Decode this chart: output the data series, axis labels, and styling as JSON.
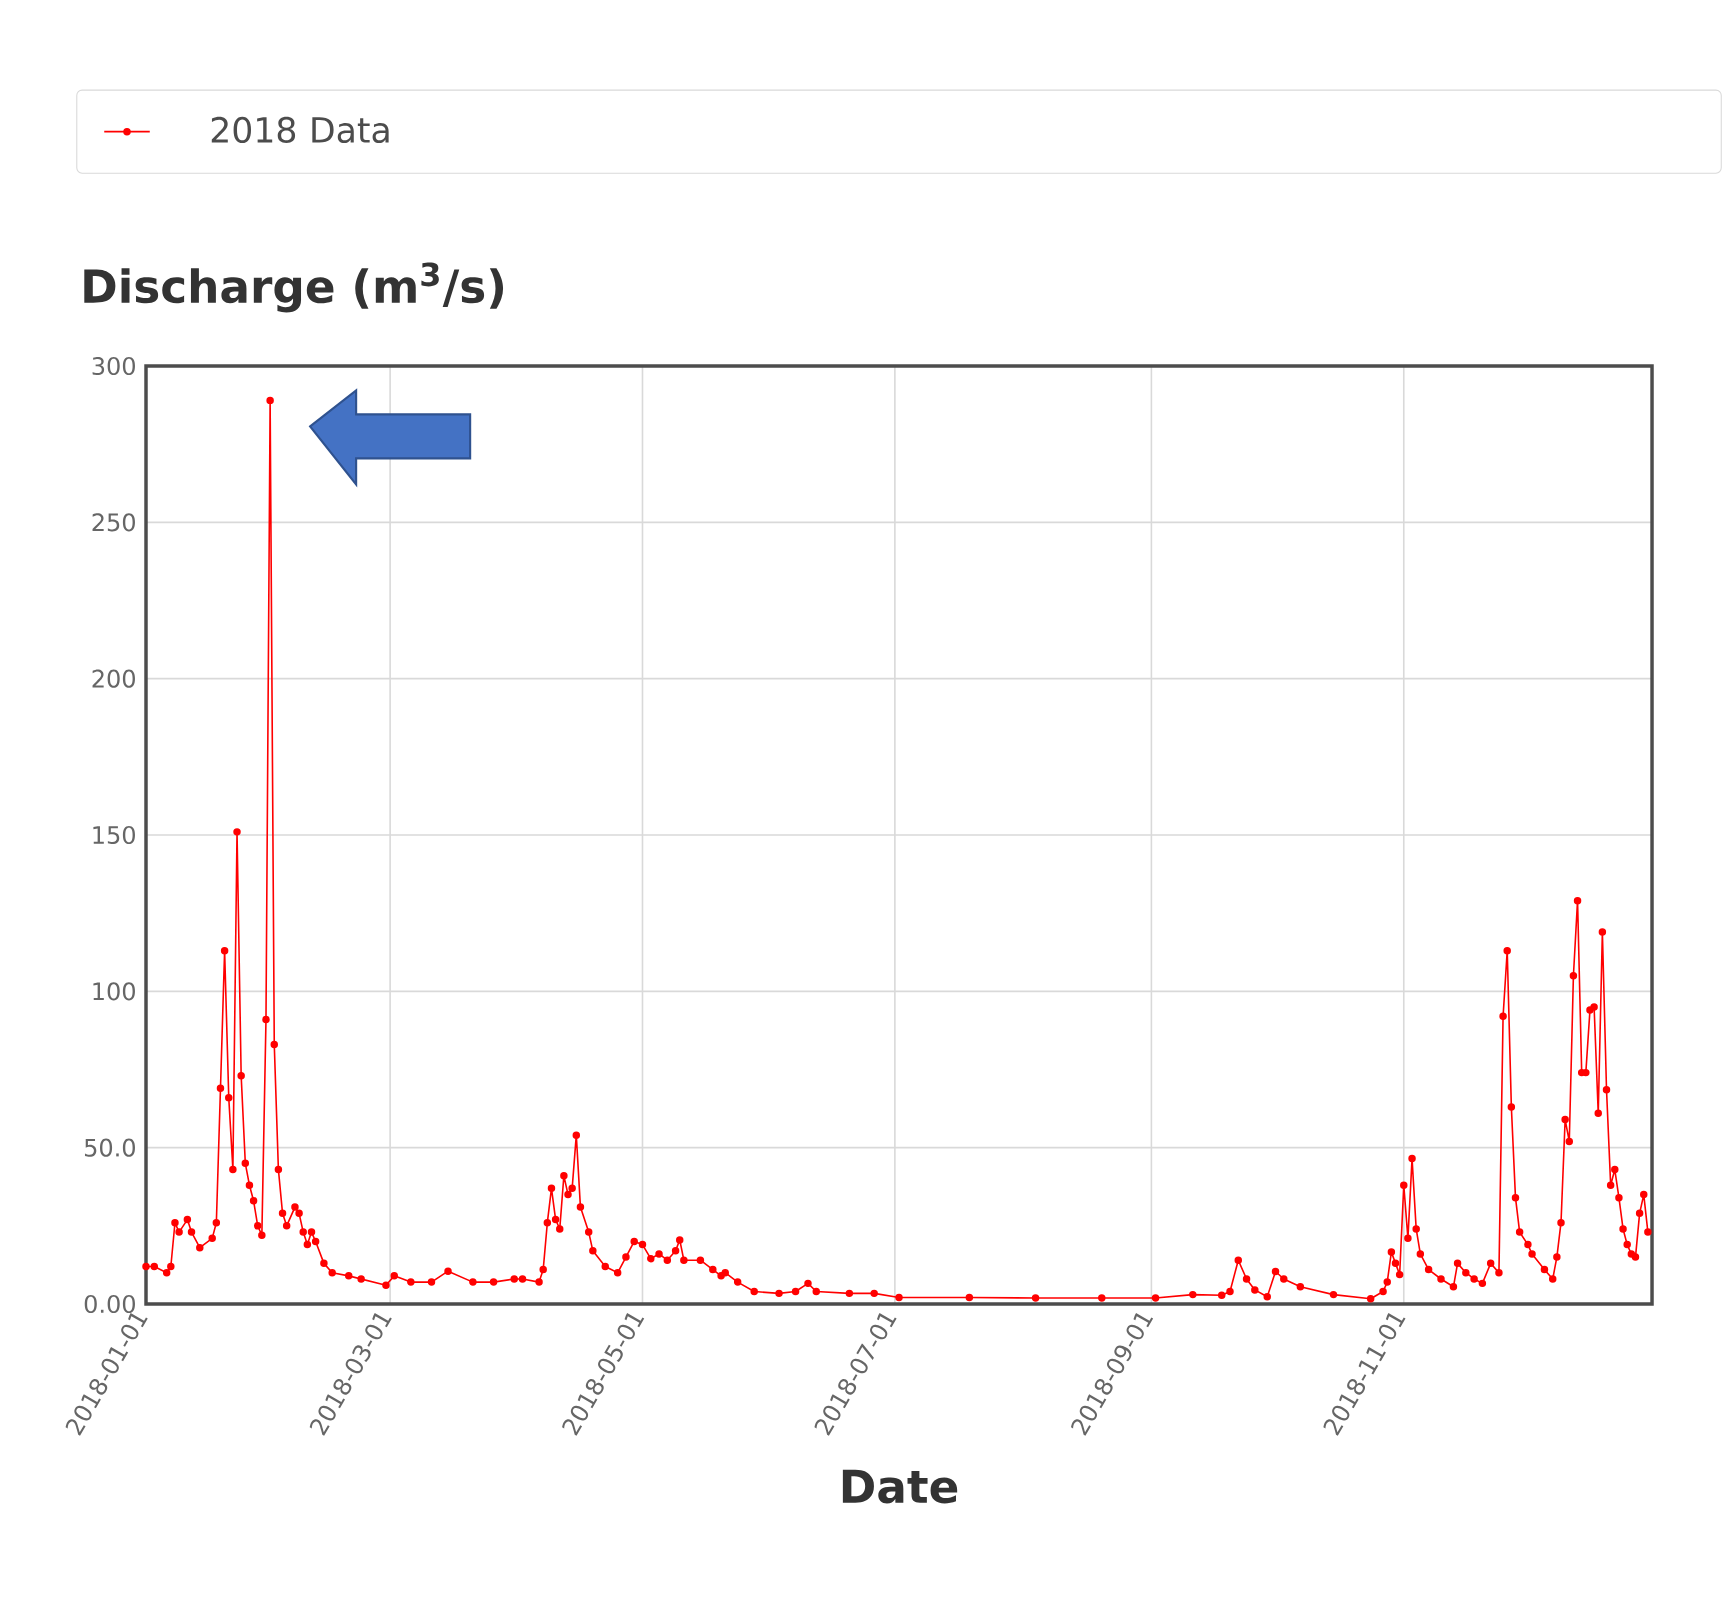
{
  "chart_data": {
    "type": "line",
    "title": "Discharge (m$^{3}$/s)",
    "xlabel": "Date",
    "xlim": [
      "2018-01-01",
      "2018-12-31"
    ],
    "xticks": [
      "2018-01-01",
      "2018-03-01",
      "2018-05-01",
      "2018-07-01",
      "2018-09-01",
      "2018-11-01"
    ],
    "ylim": [
      0,
      300
    ],
    "yticks": [
      {
        "value": 0,
        "label": "0.00"
      },
      {
        "value": 50,
        "label": "50.0"
      },
      100,
      150,
      200,
      250,
      300
    ],
    "grid": true,
    "legend": "top",
    "marker": "circle",
    "line_style": "solid",
    "series": [
      {
        "name": "2018 Data",
        "color": "#ff0000",
        "x": [
          "2018-01-01",
          "2018-01-03",
          "2018-01-06",
          "2018-01-07",
          "2018-01-08",
          "2018-01-09",
          "2018-01-11",
          "2018-01-12",
          "2018-01-14",
          "2018-01-17",
          "2018-01-18",
          "2018-01-19",
          "2018-01-20",
          "2018-01-21",
          "2018-01-22",
          "2018-01-23",
          "2018-01-24",
          "2018-01-25",
          "2018-01-26",
          "2018-01-27",
          "2018-01-28",
          "2018-01-29",
          "2018-01-30",
          "2018-01-31",
          "2018-02-01",
          "2018-02-02",
          "2018-02-03",
          "2018-02-04",
          "2018-02-06",
          "2018-02-07",
          "2018-02-08",
          "2018-02-09",
          "2018-02-10",
          "2018-02-11",
          "2018-02-13",
          "2018-02-15",
          "2018-02-19",
          "2018-02-22",
          "2018-02-28",
          "2018-03-02",
          "2018-03-06",
          "2018-03-11",
          "2018-03-15",
          "2018-03-21",
          "2018-03-26",
          "2018-03-31",
          "2018-04-02",
          "2018-04-06",
          "2018-04-07",
          "2018-04-08",
          "2018-04-09",
          "2018-04-10",
          "2018-04-11",
          "2018-04-12",
          "2018-04-13",
          "2018-04-14",
          "2018-04-15",
          "2018-04-16",
          "2018-04-18",
          "2018-04-19",
          "2018-04-22",
          "2018-04-25",
          "2018-04-27",
          "2018-04-29",
          "2018-05-01",
          "2018-05-03",
          "2018-05-05",
          "2018-05-07",
          "2018-05-09",
          "2018-05-10",
          "2018-05-11",
          "2018-05-15",
          "2018-05-18",
          "2018-05-20",
          "2018-05-21",
          "2018-05-24",
          "2018-05-28",
          "2018-06-03",
          "2018-06-07",
          "2018-06-10",
          "2018-06-12",
          "2018-06-20",
          "2018-06-26",
          "2018-07-02",
          "2018-07-19",
          "2018-08-04",
          "2018-08-20",
          "2018-09-02",
          "2018-09-11",
          "2018-09-18",
          "2018-09-20",
          "2018-09-22",
          "2018-09-24",
          "2018-09-26",
          "2018-09-29",
          "2018-10-01",
          "2018-10-03",
          "2018-10-07",
          "2018-10-15",
          "2018-10-24",
          "2018-10-27",
          "2018-10-28",
          "2018-10-29",
          "2018-10-30",
          "2018-10-31",
          "2018-11-01",
          "2018-11-02",
          "2018-11-03",
          "2018-11-04",
          "2018-11-05",
          "2018-11-07",
          "2018-11-10",
          "2018-11-13",
          "2018-11-14",
          "2018-11-16",
          "2018-11-18",
          "2018-11-20",
          "2018-11-22",
          "2018-11-24",
          "2018-11-25",
          "2018-11-26",
          "2018-11-27",
          "2018-11-28",
          "2018-11-29",
          "2018-12-01",
          "2018-12-02",
          "2018-12-05",
          "2018-12-07",
          "2018-12-08",
          "2018-12-09",
          "2018-12-10",
          "2018-12-11",
          "2018-12-12",
          "2018-12-13",
          "2018-12-14",
          "2018-12-15",
          "2018-12-16",
          "2018-12-17",
          "2018-12-18",
          "2018-12-19",
          "2018-12-20",
          "2018-12-21",
          "2018-12-22",
          "2018-12-23",
          "2018-12-24",
          "2018-12-25",
          "2018-12-26",
          "2018-12-27",
          "2018-12-28",
          "2018-12-29",
          "2018-12-30"
        ],
        "values": [
          12,
          12,
          10,
          12,
          26,
          23,
          27,
          23,
          18,
          21,
          26,
          69,
          113,
          66,
          43,
          151,
          73,
          45,
          38,
          33,
          25,
          22,
          91,
          289,
          83,
          43,
          29,
          25,
          31,
          29,
          23,
          19,
          23,
          20,
          13,
          10,
          9,
          8,
          6,
          9,
          7,
          7,
          10.5,
          7,
          7,
          8,
          8,
          7,
          11,
          26,
          37,
          27,
          24,
          41,
          35,
          37,
          54,
          31,
          23,
          17,
          12,
          10,
          15,
          20,
          19,
          14.5,
          16,
          14,
          17,
          20.5,
          14,
          14,
          11,
          9,
          10,
          7,
          4,
          3.4,
          4,
          6.6,
          4,
          3.4,
          3.4,
          2.1,
          2.1,
          1.9,
          1.9,
          1.9,
          3,
          2.8,
          4,
          14,
          8,
          4.5,
          2.3,
          10.4,
          8,
          5.5,
          3,
          1.7,
          4,
          7,
          16.6,
          13,
          9.4,
          38,
          21,
          46.5,
          24,
          16,
          11,
          8,
          5.5,
          13,
          10,
          8,
          6.6,
          13,
          10,
          92,
          113,
          63,
          34,
          23,
          19,
          16,
          11,
          8,
          15,
          26,
          59,
          52,
          105,
          129,
          74,
          74,
          94,
          95,
          61,
          119,
          68.5,
          38,
          43,
          34,
          24,
          19,
          16,
          15,
          29,
          35,
          23
        ]
      }
    ]
  }
}
